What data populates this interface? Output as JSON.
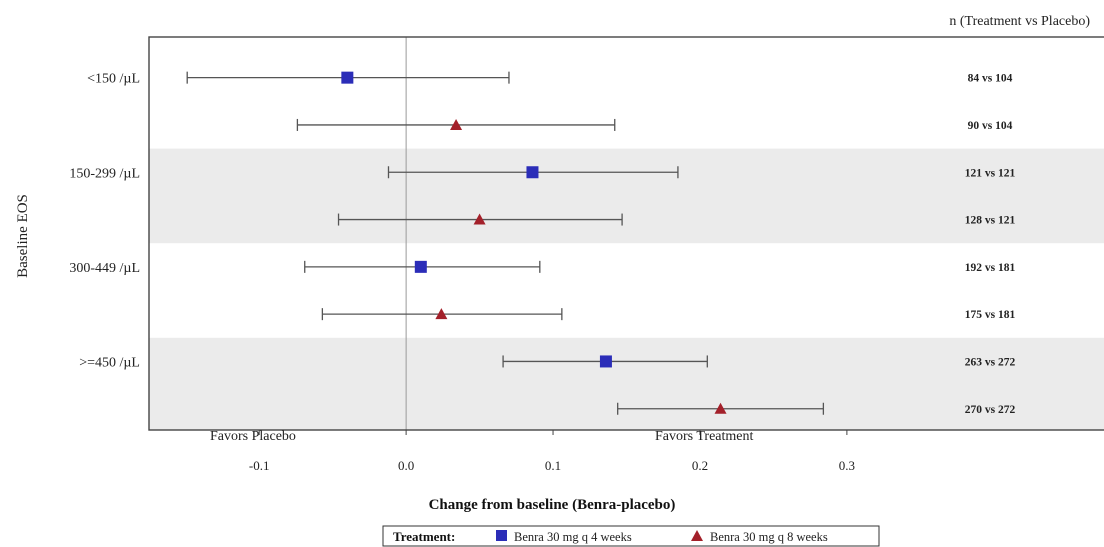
{
  "chart_data": {
    "type": "forest",
    "xlabel": "Change from baseline (Benra-placebo)",
    "ylabel": "Baseline EOS",
    "n_header": "n (Treatment vs Placebo)",
    "favors_left": "Favors Placebo",
    "favors_right": "Favors Treatment",
    "xlim": [
      -0.175,
      0.475
    ],
    "xticks": [
      -0.1,
      0.0,
      0.1,
      0.2,
      0.3
    ],
    "xtick_labels": [
      "-0.1",
      "0.0",
      "0.1",
      "0.2",
      "0.3"
    ],
    "reference_line": 0.0,
    "legend": {
      "title": "Treatment:",
      "items": [
        {
          "label": "Benra 30 mg q 4 weeks",
          "marker": "square",
          "color": "#2b2db8"
        },
        {
          "label": "Benra 30 mg q 8 weeks",
          "marker": "triangle",
          "color": "#a3202a"
        }
      ],
      "placement": "bottom-center"
    },
    "groups": [
      {
        "label": "<150 /µL",
        "shaded": false
      },
      {
        "label": "150-299 /µL",
        "shaded": true
      },
      {
        "label": "300-449 /µL",
        "shaded": false
      },
      {
        "label": ">=450 /µL",
        "shaded": true
      }
    ],
    "rows": [
      {
        "group": 0,
        "series": 0,
        "estimate": -0.04,
        "lower": -0.149,
        "upper": 0.07,
        "n": "84 vs 104"
      },
      {
        "group": 0,
        "series": 1,
        "estimate": 0.034,
        "lower": -0.074,
        "upper": 0.142,
        "n": "90 vs 104"
      },
      {
        "group": 1,
        "series": 0,
        "estimate": 0.086,
        "lower": -0.012,
        "upper": 0.185,
        "n": "121 vs 121"
      },
      {
        "group": 1,
        "series": 1,
        "estimate": 0.05,
        "lower": -0.046,
        "upper": 0.147,
        "n": "128 vs 121"
      },
      {
        "group": 2,
        "series": 0,
        "estimate": 0.01,
        "lower": -0.069,
        "upper": 0.091,
        "n": "192 vs 181"
      },
      {
        "group": 2,
        "series": 1,
        "estimate": 0.024,
        "lower": -0.057,
        "upper": 0.106,
        "n": "175 vs 181"
      },
      {
        "group": 3,
        "series": 0,
        "estimate": 0.136,
        "lower": 0.066,
        "upper": 0.205,
        "n": "263 vs 272"
      },
      {
        "group": 3,
        "series": 1,
        "estimate": 0.214,
        "lower": 0.144,
        "upper": 0.284,
        "n": "270 vs 272"
      }
    ],
    "colors": {
      "band": "#ebebeb",
      "line": "#555555",
      "frame": "#444444",
      "reference": "#999999"
    }
  }
}
